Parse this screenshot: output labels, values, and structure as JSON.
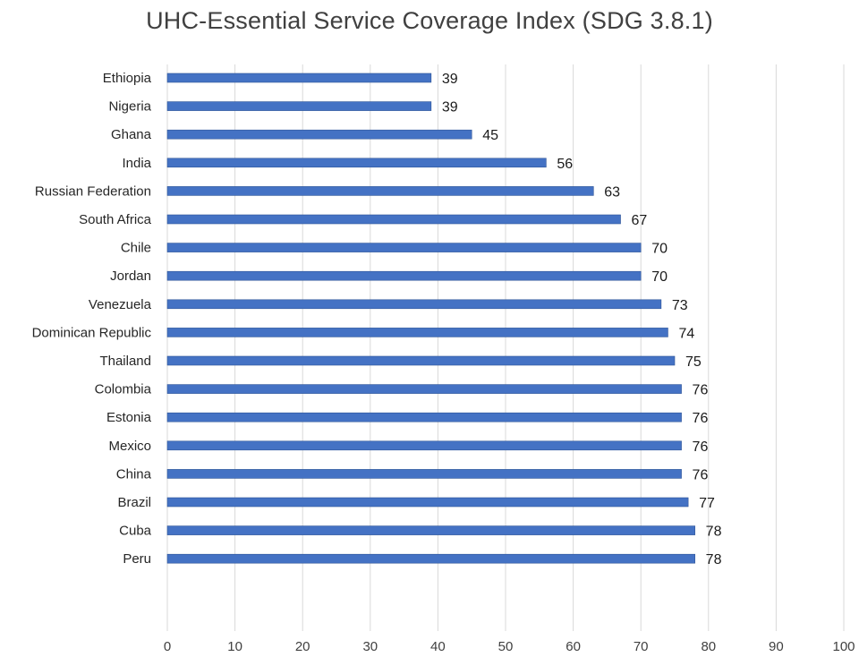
{
  "chart_data": {
    "type": "bar",
    "orientation": "horizontal",
    "title": "UHC-Essential Service Coverage Index (SDG 3.8.1)",
    "xlabel": "",
    "ylabel": "",
    "categories": [
      "Ethiopia",
      "Nigeria",
      "Ghana",
      "India",
      "Russian Federation",
      "South Africa",
      "Chile",
      "Jordan",
      "Venezuela",
      "Dominican Republic",
      "Thailand",
      "Colombia",
      "Estonia",
      "Mexico",
      "China",
      "Brazil",
      "Cuba",
      "Peru"
    ],
    "values": [
      39,
      39,
      45,
      56,
      63,
      67,
      70,
      70,
      73,
      74,
      75,
      76,
      76,
      76,
      76,
      77,
      78,
      78
    ],
    "xlim": [
      0,
      100
    ],
    "xticks": [
      "0",
      "10",
      "20",
      "30",
      "40",
      "50",
      "60",
      "70",
      "80",
      "90",
      "100"
    ],
    "grid": "vertical",
    "data_labels": true,
    "legend": "none",
    "bar_color": "#4472c4"
  }
}
